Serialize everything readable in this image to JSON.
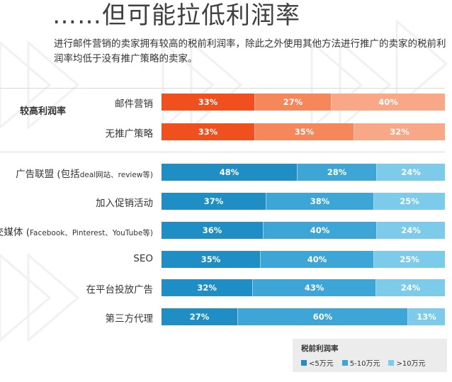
{
  "title": "……但可能拉低利润率",
  "subtitle": "进行邮件营销的卖家拥有较高的税前利润率，除此之外使用其他方法进行推广的卖家的税前利润率均低于没有推广策略的卖家。",
  "colors": {
    "high_1": "#f04f1e",
    "high_2": "#f6875a",
    "high_3": "#f9a887",
    "low_1": "#1f8ec5",
    "low_2": "#3da6d6",
    "low_3": "#7ccbeb"
  },
  "chart_data": {
    "type": "bar",
    "orientation": "horizontal-stacked-100",
    "group_label": "较高利润率",
    "categories": [
      "邮件营销",
      "无推广策略",
      "广告联盟 (包括deal网站、review等)",
      "加入促销活动",
      "社交媒体 (Facebook、Pinterest、YouTube等)",
      "SEO",
      "在平台投放广告",
      "第三方代理"
    ],
    "label_parts": [
      {
        "main": "邮件营销",
        "small": ""
      },
      {
        "main": "无推广策略",
        "small": ""
      },
      {
        "main": "广告联盟 (包括",
        "small": "deal网站、review等)"
      },
      {
        "main": "加入促销活动",
        "small": ""
      },
      {
        "main": "社交媒体 (",
        "small": "Facebook、Pinterest、YouTube等)"
      },
      {
        "main": "SEO",
        "small": ""
      },
      {
        "main": "在平台投放广告",
        "small": ""
      },
      {
        "main": "第三方代理",
        "small": ""
      }
    ],
    "series": [
      {
        "name": "<5万元",
        "values": [
          33,
          33,
          48,
          37,
          36,
          35,
          32,
          27
        ]
      },
      {
        "name": "5-10万元",
        "values": [
          27,
          35,
          28,
          38,
          40,
          40,
          43,
          60
        ]
      },
      {
        "name": ">10万元",
        "values": [
          40,
          32,
          24,
          25,
          24,
          25,
          24,
          13
        ]
      }
    ],
    "highlight_rows": 2,
    "legend": {
      "title": "税前利润率",
      "position": "bottom-right"
    }
  }
}
